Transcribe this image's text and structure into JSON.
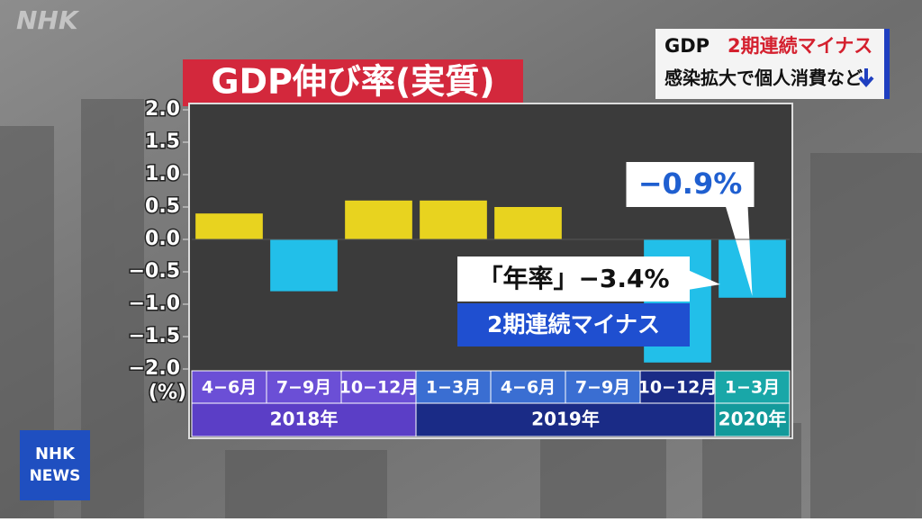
{
  "chart_data": {
    "type": "bar",
    "title": "GDP伸び率(実質)",
    "groups": [
      {
        "label": "2018年",
        "categories": [
          "4−6月",
          "7−9月",
          "10−12月"
        ],
        "values": [
          0.4,
          -0.8,
          0.6
        ]
      },
      {
        "label": "2019年",
        "categories": [
          "1−3月",
          "4−6月",
          "7−9月",
          "10−12月"
        ],
        "values": [
          0.6,
          0.5,
          0,
          -1.9
        ]
      },
      {
        "label": "2020年",
        "categories": [
          "1−3月"
        ],
        "values": [
          -0.9
        ],
        "value_labels": [
          "−0.9%"
        ]
      }
    ],
    "positive_color": "#e8d31f",
    "negative_color": "#22bfe9",
    "ylim": [
      -2,
      2
    ],
    "yticks": [
      {
        "value": -2,
        "label": "−2.0"
      },
      {
        "value": -1.5,
        "label": "−1.5"
      },
      {
        "value": -1,
        "label": "−1.0"
      },
      {
        "value": -0.5,
        "label": "−0.5"
      },
      {
        "value": 0,
        "label": "0.0"
      },
      {
        "value": 0.5,
        "label": "0.5"
      },
      {
        "value": 1,
        "label": "1.0"
      },
      {
        "value": 1.5,
        "label": "1.5"
      },
      {
        "value": 2,
        "label": "2.0"
      }
    ],
    "y_unit": "(%)",
    "annotations": [
      "「年率」−3.4%",
      "2期連続マイナス"
    ]
  },
  "headline": {
    "prefix": "GDP",
    "highlight": "2期連続マイナス",
    "subline": "感染拡大で個人消費など"
  },
  "logos": {
    "watermark": "NHK",
    "badge": [
      "NHK",
      "NEWS"
    ]
  }
}
